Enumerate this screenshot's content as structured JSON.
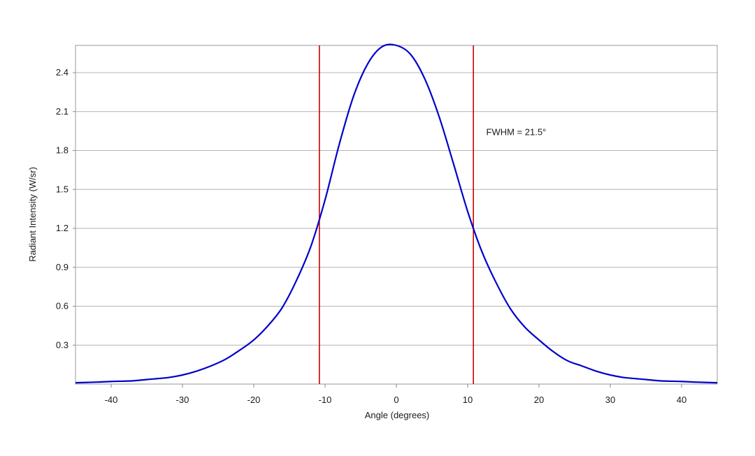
{
  "chart_data": {
    "type": "line",
    "title": "",
    "xlabel": "Angle (degrees)",
    "ylabel": "Radiant Intensity (W/sr)",
    "xlim": [
      -45,
      45
    ],
    "ylim": [
      0,
      2.61
    ],
    "x_ticks": [
      -40,
      -30,
      -20,
      -10,
      0,
      10,
      20,
      30,
      40
    ],
    "x_tick_labels": [
      "-40",
      "-30",
      "-20",
      "-10",
      "0",
      "10",
      "20",
      "30",
      "40"
    ],
    "y_ticks": [
      0.3,
      0.6,
      0.9,
      1.2,
      1.5,
      1.8,
      2.1,
      2.4
    ],
    "y_tick_labels": [
      "0.3",
      "0.6",
      "0.9",
      "1.2",
      "1.5",
      "1.8",
      "2.1",
      "2.4"
    ],
    "grid": {
      "horizontal": true,
      "vertical": false
    },
    "series": [
      {
        "color": "#0000cc",
        "x": [
          -45,
          -42,
          -40,
          -37,
          -35,
          -32,
          -30,
          -28,
          -26,
          -24,
          -22,
          -20,
          -18,
          -16,
          -14,
          -12,
          -10,
          -8,
          -6,
          -4,
          -2,
          0,
          2,
          4,
          6,
          8,
          10,
          12,
          14,
          16,
          18,
          20,
          22,
          24,
          26,
          28,
          30,
          32,
          35,
          37,
          40,
          42,
          45
        ],
        "y": [
          0.01,
          0.015,
          0.02,
          0.025,
          0.035,
          0.05,
          0.07,
          0.1,
          0.14,
          0.19,
          0.26,
          0.34,
          0.45,
          0.59,
          0.8,
          1.06,
          1.42,
          1.85,
          2.22,
          2.47,
          2.6,
          2.61,
          2.54,
          2.35,
          2.06,
          1.7,
          1.33,
          1.02,
          0.78,
          0.58,
          0.44,
          0.34,
          0.25,
          0.18,
          0.14,
          0.1,
          0.07,
          0.05,
          0.035,
          0.025,
          0.02,
          0.015,
          0.01
        ]
      }
    ],
    "vertical_markers": [
      {
        "x": -10.8,
        "color": "#cc0000"
      },
      {
        "x": 10.8,
        "color": "#cc0000"
      }
    ],
    "annotations": [
      {
        "text": "FWHM = 21.5°",
        "x": 12.6,
        "y": 1.94
      }
    ]
  }
}
